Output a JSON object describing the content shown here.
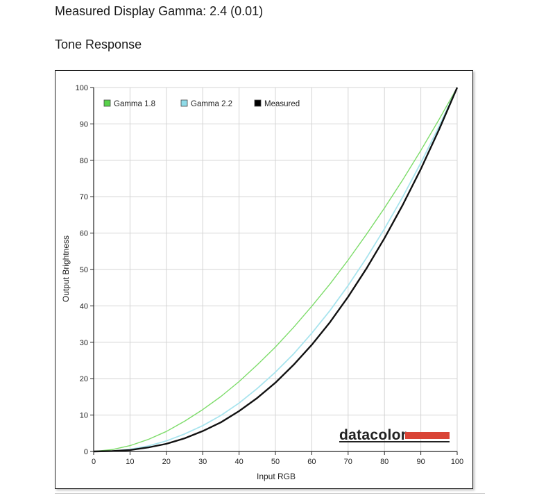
{
  "page": {
    "gamma_heading": "Measured Display Gamma: 2.4 (0.01)",
    "tone_heading": "Tone Response"
  },
  "brand": {
    "logo_text": "datacolor",
    "logo_bar_color": "#d94436"
  },
  "chart_data": {
    "type": "line",
    "title": "",
    "xlabel": "Input RGB",
    "ylabel": "Output Brightness",
    "xlim": [
      0,
      100
    ],
    "ylim": [
      0,
      100
    ],
    "xticks": [
      0,
      10,
      20,
      30,
      40,
      50,
      60,
      70,
      80,
      90,
      100
    ],
    "yticks": [
      0,
      10,
      20,
      30,
      40,
      50,
      60,
      70,
      80,
      90,
      100
    ],
    "grid": true,
    "legend_position": "top-left",
    "series": [
      {
        "name": "Gamma 1.8",
        "color": "#7ddc6a",
        "swatch_color": "#58d24a",
        "x": [
          0,
          5,
          10,
          15,
          20,
          25,
          30,
          35,
          40,
          45,
          50,
          55,
          60,
          65,
          70,
          75,
          80,
          85,
          90,
          95,
          100
        ],
        "y": [
          0,
          0.5,
          1.6,
          3.3,
          5.5,
          8.3,
          11.5,
          15.1,
          19.2,
          23.8,
          28.7,
          34.1,
          39.9,
          46.0,
          52.6,
          59.6,
          66.9,
          74.6,
          82.7,
          91.2,
          100
        ]
      },
      {
        "name": "Gamma 2.2",
        "color": "#a8e4ee",
        "swatch_color": "#8fdbe8",
        "x": [
          0,
          5,
          10,
          15,
          20,
          25,
          30,
          35,
          40,
          45,
          50,
          55,
          60,
          65,
          70,
          75,
          80,
          85,
          90,
          95,
          100
        ],
        "y": [
          0,
          0.1,
          0.6,
          1.5,
          2.9,
          4.8,
          7.1,
          9.9,
          13.3,
          17.3,
          21.8,
          26.8,
          32.5,
          38.7,
          45.6,
          53.1,
          61.2,
          69.9,
          79.3,
          89.3,
          100
        ]
      },
      {
        "name": "Measured",
        "color": "#111111",
        "swatch_color": "#000000",
        "x": [
          0,
          5,
          10,
          15,
          20,
          25,
          30,
          35,
          40,
          45,
          50,
          55,
          60,
          65,
          70,
          75,
          80,
          85,
          90,
          95,
          100
        ],
        "y": [
          0,
          0.1,
          0.4,
          1.1,
          2.1,
          3.6,
          5.6,
          8.0,
          11.1,
          14.7,
          18.9,
          23.8,
          29.3,
          35.5,
          42.5,
          50.2,
          58.6,
          67.7,
          77.6,
          88.4,
          100
        ]
      }
    ]
  }
}
